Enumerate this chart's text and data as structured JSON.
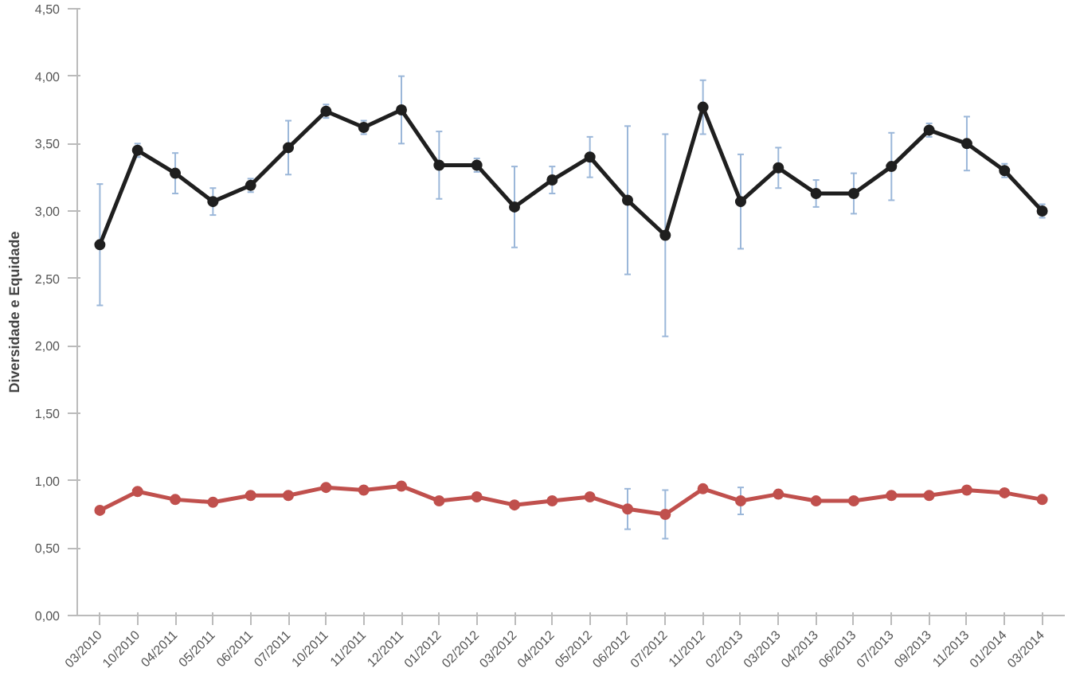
{
  "chart_data": {
    "type": "line",
    "ylabel": "Diversidade e Equidade",
    "categories": [
      "03/2010",
      "10/2010",
      "04/2011",
      "05/2011",
      "06/2011",
      "07/2011",
      "10/2011",
      "11/2011",
      "12/2011",
      "01/2012",
      "02/2012",
      "03/2012",
      "04/2012",
      "05/2012",
      "06/2012",
      "07/2012",
      "11/2012",
      "02/2013",
      "03/2013",
      "04/2013",
      "06/2013",
      "07/2013",
      "09/2013",
      "11/2013",
      "01/2014",
      "03/2014"
    ],
    "series": [
      {
        "color": "#1f1f1f",
        "values": [
          2.75,
          3.45,
          3.28,
          3.07,
          3.19,
          3.47,
          3.74,
          3.62,
          3.75,
          3.34,
          3.34,
          3.03,
          3.23,
          3.4,
          3.08,
          2.82,
          3.77,
          3.07,
          3.32,
          3.13,
          3.13,
          3.33,
          3.6,
          3.5,
          3.3,
          3.0
        ],
        "errors": [
          0.45,
          0.05,
          0.15,
          0.1,
          0.05,
          0.2,
          0.05,
          0.05,
          0.25,
          0.25,
          0.05,
          0.3,
          0.1,
          0.15,
          0.55,
          0.75,
          0.2,
          0.35,
          0.15,
          0.1,
          0.15,
          0.25,
          0.05,
          0.2,
          0.05,
          0.05
        ]
      },
      {
        "color": "#c0504d",
        "values": [
          0.78,
          0.92,
          0.86,
          0.84,
          0.89,
          0.89,
          0.95,
          0.93,
          0.96,
          0.85,
          0.88,
          0.82,
          0.85,
          0.88,
          0.79,
          0.75,
          0.94,
          0.85,
          0.9,
          0.85,
          0.85,
          0.89,
          0.89,
          0.93,
          0.91,
          0.86
        ],
        "errors": [
          null,
          null,
          null,
          null,
          null,
          null,
          null,
          null,
          null,
          null,
          null,
          null,
          null,
          null,
          0.15,
          0.18,
          null,
          0.1,
          null,
          null,
          null,
          null,
          null,
          null,
          null,
          null
        ]
      }
    ],
    "ylim": [
      0,
      4.5
    ],
    "yticks": [
      {
        "value": 0,
        "label": "0,00"
      },
      {
        "value": 0.5,
        "label": "0,50"
      },
      {
        "value": 1,
        "label": "1,00"
      },
      {
        "value": 1.5,
        "label": "1,50"
      },
      {
        "value": 2,
        "label": "2,00"
      },
      {
        "value": 2.5,
        "label": "2,50"
      },
      {
        "value": 3,
        "label": "3,00"
      },
      {
        "value": 3.5,
        "label": "3,50"
      },
      {
        "value": 4,
        "label": "4,00"
      },
      {
        "value": 4.5,
        "label": "4,50"
      }
    ],
    "marker": "circle",
    "line_style": "solid",
    "grid": false
  }
}
